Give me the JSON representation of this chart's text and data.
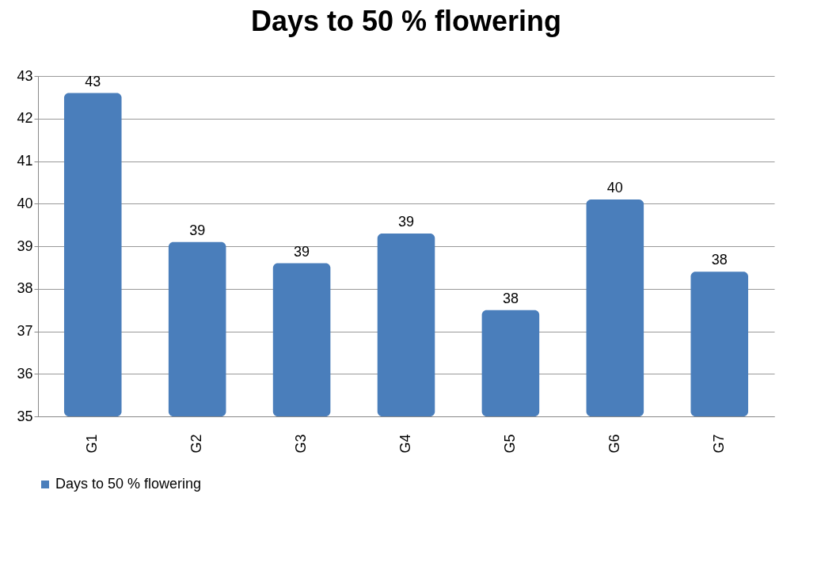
{
  "chart_data": {
    "type": "bar",
    "title": "Days to 50 % flowering",
    "categories": [
      "G1",
      "G2",
      "G3",
      "G4",
      "G5",
      "G6",
      "G7"
    ],
    "series": [
      {
        "name": "Days to 50 % flowering",
        "color": "#4a7ebb",
        "values": [
          42.6,
          39.1,
          38.6,
          39.3,
          37.5,
          40.1,
          38.4
        ],
        "value_labels": [
          "43",
          "39",
          "39",
          "39",
          "38",
          "40",
          "38"
        ]
      }
    ],
    "ylim": [
      35,
      43
    ],
    "yticks": [
      35,
      36,
      37,
      38,
      39,
      40,
      41,
      42,
      43
    ],
    "grid": "y",
    "legend": "bottom"
  }
}
